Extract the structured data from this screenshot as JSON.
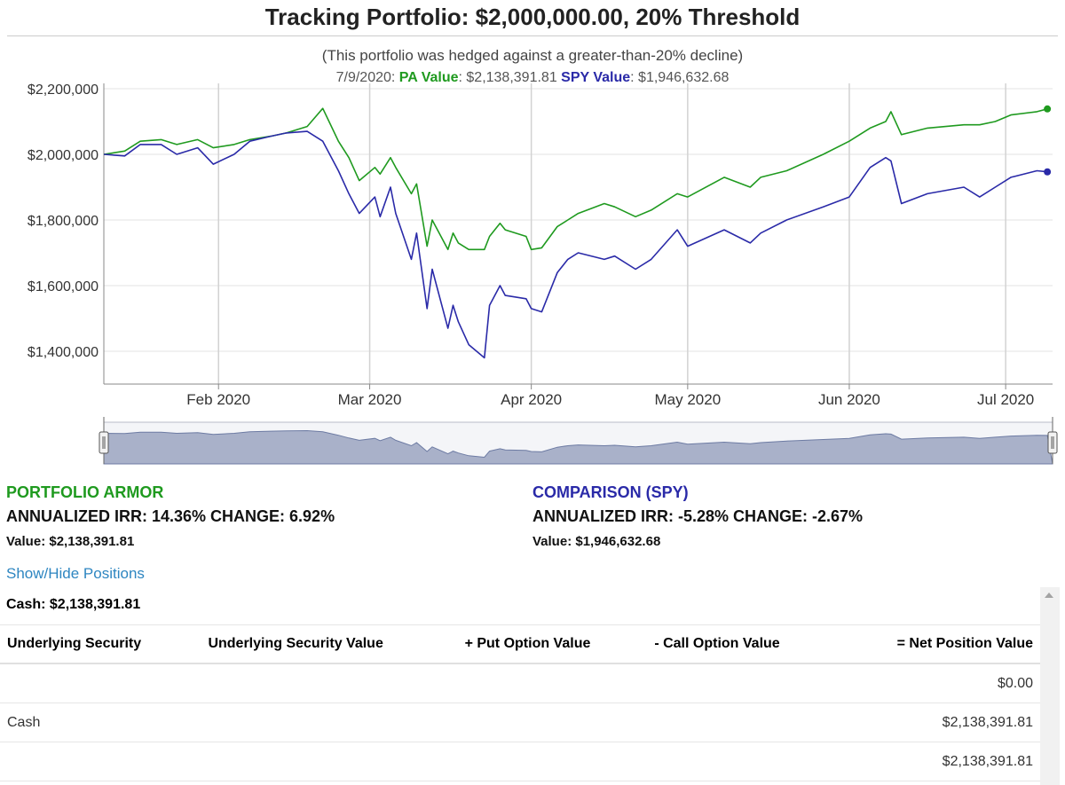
{
  "header": {
    "title": "Tracking Portfolio: $2,000,000.00, 20% Threshold",
    "subtitle": "(This portfolio was hedged against a greater-than-20% decline)",
    "readout": {
      "date": "7/9/2020:",
      "pa_label": "PA Value",
      "pa_value": ": $2,138,391.81",
      "spy_label": "SPY Value",
      "spy_value": ": $1,946,632.68"
    }
  },
  "colors": {
    "pa": "#1f9a1f",
    "spy": "#2a2aa8",
    "link": "#2e86c1"
  },
  "chart_data": {
    "type": "line",
    "ylim": [
      1300000,
      2200000
    ],
    "yticks": [
      1400000,
      1600000,
      1800000,
      2000000,
      2200000
    ],
    "ytick_labels": [
      "$1,400,000",
      "$1,600,000",
      "$1,800,000",
      "$2,000,000",
      "$2,200,000"
    ],
    "xlim": [
      "2020-01-10",
      "2020-07-10"
    ],
    "xticks": [
      "2020-02-01",
      "2020-03-01",
      "2020-04-01",
      "2020-05-01",
      "2020-06-01",
      "2020-07-01"
    ],
    "xtick_labels": [
      "Feb 2020",
      "Mar 2020",
      "Apr 2020",
      "May 2020",
      "Jun 2020",
      "Jul 2020"
    ],
    "grid": true,
    "navigator": true,
    "series": [
      {
        "name": "PA Value",
        "x": [
          "2020-01-10",
          "2020-01-14",
          "2020-01-17",
          "2020-01-21",
          "2020-01-24",
          "2020-01-28",
          "2020-01-31",
          "2020-02-04",
          "2020-02-07",
          "2020-02-11",
          "2020-02-14",
          "2020-02-18",
          "2020-02-21",
          "2020-02-24",
          "2020-02-26",
          "2020-02-28",
          "2020-03-02",
          "2020-03-03",
          "2020-03-05",
          "2020-03-06",
          "2020-03-09",
          "2020-03-10",
          "2020-03-12",
          "2020-03-13",
          "2020-03-16",
          "2020-03-17",
          "2020-03-18",
          "2020-03-20",
          "2020-03-23",
          "2020-03-24",
          "2020-03-26",
          "2020-03-27",
          "2020-03-31",
          "2020-04-01",
          "2020-04-03",
          "2020-04-06",
          "2020-04-08",
          "2020-04-10",
          "2020-04-15",
          "2020-04-17",
          "2020-04-21",
          "2020-04-24",
          "2020-04-29",
          "2020-05-01",
          "2020-05-08",
          "2020-05-13",
          "2020-05-15",
          "2020-05-20",
          "2020-05-27",
          "2020-06-01",
          "2020-06-05",
          "2020-06-08",
          "2020-06-09",
          "2020-06-11",
          "2020-06-16",
          "2020-06-23",
          "2020-06-26",
          "2020-06-29",
          "2020-07-02",
          "2020-07-07",
          "2020-07-09"
        ],
        "y": [
          2000000,
          2010000,
          2040000,
          2045000,
          2030000,
          2045000,
          2020000,
          2030000,
          2045000,
          2055000,
          2065000,
          2085000,
          2140000,
          2040000,
          1990000,
          1920000,
          1960000,
          1940000,
          1990000,
          1960000,
          1880000,
          1910000,
          1720000,
          1800000,
          1710000,
          1760000,
          1730000,
          1710000,
          1710000,
          1750000,
          1790000,
          1770000,
          1750000,
          1710000,
          1715000,
          1780000,
          1800000,
          1820000,
          1850000,
          1840000,
          1810000,
          1830000,
          1880000,
          1870000,
          1930000,
          1900000,
          1930000,
          1950000,
          2000000,
          2040000,
          2080000,
          2100000,
          2130000,
          2060000,
          2080000,
          2090000,
          2090000,
          2100000,
          2120000,
          2130000,
          2138391.81
        ]
      },
      {
        "name": "SPY Value",
        "x": [
          "2020-01-10",
          "2020-01-14",
          "2020-01-17",
          "2020-01-21",
          "2020-01-24",
          "2020-01-28",
          "2020-01-31",
          "2020-02-04",
          "2020-02-07",
          "2020-02-11",
          "2020-02-14",
          "2020-02-18",
          "2020-02-21",
          "2020-02-24",
          "2020-02-26",
          "2020-02-28",
          "2020-03-02",
          "2020-03-03",
          "2020-03-05",
          "2020-03-06",
          "2020-03-09",
          "2020-03-10",
          "2020-03-12",
          "2020-03-13",
          "2020-03-16",
          "2020-03-17",
          "2020-03-18",
          "2020-03-20",
          "2020-03-23",
          "2020-03-24",
          "2020-03-26",
          "2020-03-27",
          "2020-03-31",
          "2020-04-01",
          "2020-04-03",
          "2020-04-06",
          "2020-04-08",
          "2020-04-10",
          "2020-04-15",
          "2020-04-17",
          "2020-04-21",
          "2020-04-24",
          "2020-04-29",
          "2020-05-01",
          "2020-05-08",
          "2020-05-13",
          "2020-05-15",
          "2020-05-20",
          "2020-05-27",
          "2020-06-01",
          "2020-06-05",
          "2020-06-08",
          "2020-06-09",
          "2020-06-11",
          "2020-06-16",
          "2020-06-23",
          "2020-06-26",
          "2020-06-29",
          "2020-07-02",
          "2020-07-07",
          "2020-07-09"
        ],
        "y": [
          2000000,
          1995000,
          2030000,
          2030000,
          2000000,
          2020000,
          1970000,
          2000000,
          2040000,
          2055000,
          2065000,
          2070000,
          2040000,
          1950000,
          1880000,
          1820000,
          1870000,
          1810000,
          1900000,
          1820000,
          1680000,
          1760000,
          1530000,
          1650000,
          1470000,
          1540000,
          1490000,
          1420000,
          1380000,
          1540000,
          1600000,
          1570000,
          1560000,
          1530000,
          1520000,
          1640000,
          1680000,
          1700000,
          1680000,
          1690000,
          1650000,
          1680000,
          1770000,
          1720000,
          1770000,
          1730000,
          1760000,
          1800000,
          1840000,
          1870000,
          1960000,
          1990000,
          1980000,
          1850000,
          1880000,
          1900000,
          1870000,
          1900000,
          1930000,
          1950000,
          1946632.68
        ]
      }
    ]
  },
  "summary": {
    "pa": {
      "title": "PORTFOLIO ARMOR",
      "line": "ANNUALIZED IRR: 14.36% CHANGE: 6.92%",
      "value": "Value: $2,138,391.81"
    },
    "spy": {
      "title": "COMPARISON (SPY)",
      "line": "ANNUALIZED IRR: -5.28% CHANGE: -2.67%",
      "value": "Value: $1,946,632.68"
    }
  },
  "toggle_link": "Show/Hide Positions",
  "cash_line": "Cash: $2,138,391.81",
  "positions_table": {
    "headers": [
      "Underlying Security",
      "Underlying Security Value",
      "+ Put Option Value",
      "- Call Option Value",
      "= Net Position Value"
    ],
    "rows": [
      [
        "",
        "",
        "",
        "",
        "$0.00"
      ],
      [
        "Cash",
        "",
        "",
        "",
        "$2,138,391.81"
      ],
      [
        "",
        "",
        "",
        "",
        "$2,138,391.81"
      ]
    ]
  }
}
